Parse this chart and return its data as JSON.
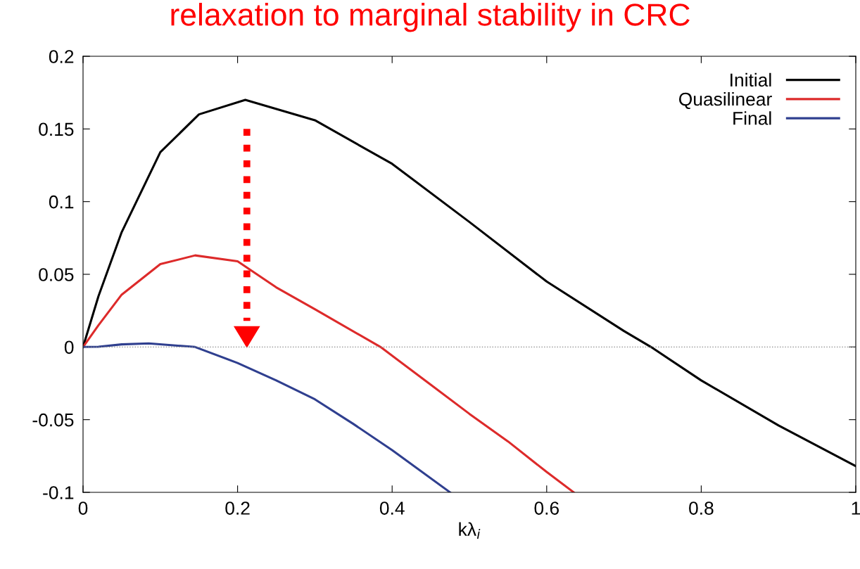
{
  "chart_data": {
    "type": "line",
    "title": "relaxation to marginal stability in CRC",
    "xlabel": "kλ$_{i}$",
    "xlim": [
      0,
      1
    ],
    "ylim": [
      -0.1,
      0.2
    ],
    "xticks": [
      0,
      0.2,
      0.4,
      0.6,
      0.8,
      1
    ],
    "yticks": [
      {
        "value": -0.1,
        "label": "-0.1"
      },
      {
        "value": -0.05,
        "label": "-0.05"
      },
      0,
      0.05,
      0.1,
      0.15,
      0.2
    ],
    "legend": "top right",
    "grid": false,
    "marker": "none",
    "line_style": "solid",
    "ref_lines": [
      {
        "axis": "y",
        "value": 0,
        "color": "#888888",
        "line_style": "dotted"
      }
    ],
    "series": [
      {
        "name": "Initial",
        "color": "#000000",
        "x": [
          0,
          0.02,
          0.05,
          0.1,
          0.15,
          0.21,
          0.3,
          0.4,
          0.5,
          0.6,
          0.7,
          0.735,
          0.8,
          0.9,
          1.0
        ],
        "values": [
          0,
          0.035,
          0.079,
          0.134,
          0.16,
          0.17,
          0.156,
          0.126,
          0.086,
          0.045,
          0.011,
          0,
          -0.023,
          -0.054,
          -0.082
        ]
      },
      {
        "name": "Quasilinear",
        "color": "#dd2a2a",
        "x": [
          0,
          0.02,
          0.05,
          0.1,
          0.145,
          0.2,
          0.25,
          0.3,
          0.385,
          0.45,
          0.5,
          0.55,
          0.6,
          0.635
        ],
        "values": [
          0,
          0.015,
          0.036,
          0.057,
          0.063,
          0.059,
          0.041,
          0.026,
          0,
          -0.026,
          -0.046,
          -0.065,
          -0.086,
          -0.1
        ]
      },
      {
        "name": "Final",
        "color": "#2f3f8f",
        "x": [
          0,
          0.02,
          0.05,
          0.085,
          0.145,
          0.2,
          0.25,
          0.3,
          0.35,
          0.4,
          0.475
        ],
        "values": [
          0,
          0.0002,
          0.0018,
          0.0025,
          0,
          -0.011,
          -0.023,
          -0.036,
          -0.053,
          -0.071,
          -0.1
        ]
      }
    ]
  }
}
